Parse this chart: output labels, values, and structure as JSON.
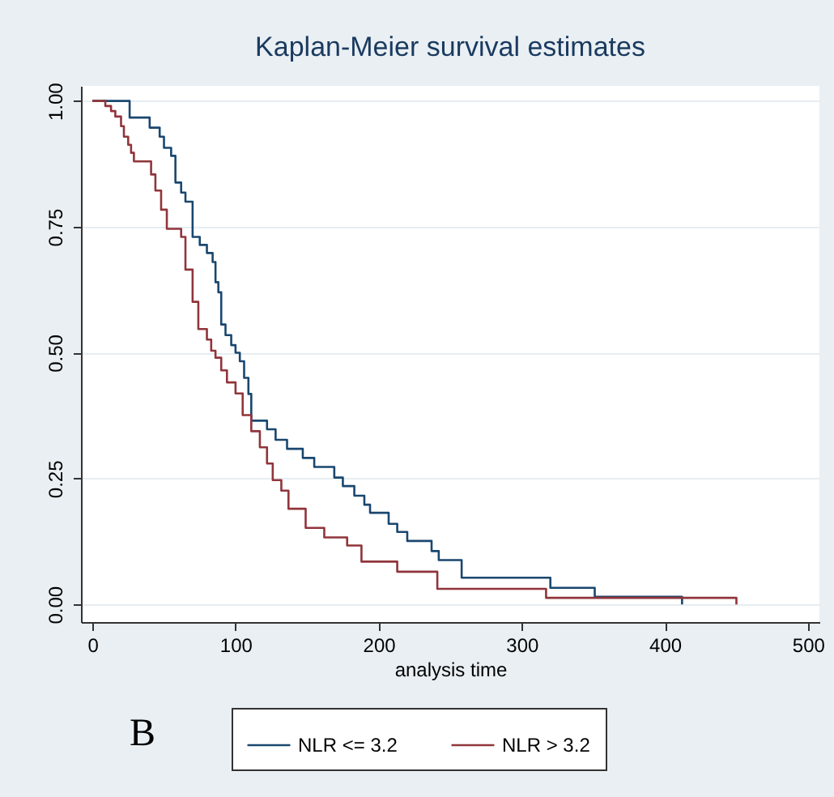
{
  "chart_data": {
    "type": "step",
    "title": "Kaplan-Meier survival estimates",
    "xlabel": "analysis time",
    "annotations": [
      "B"
    ],
    "xlim": [
      -8,
      508
    ],
    "xticks": [
      0,
      100,
      200,
      300,
      400,
      500
    ],
    "ylim": [
      -0.035,
      1.03
    ],
    "yticks": [
      {
        "value": 0,
        "label": "0.00"
      },
      {
        "value": 0.25,
        "label": "0.25"
      },
      {
        "value": 0.5,
        "label": "0.50"
      },
      {
        "value": 0.75,
        "label": "0.75"
      },
      {
        "value": 1,
        "label": "1.00"
      }
    ],
    "grid": "y",
    "legend": "bottom",
    "series": [
      {
        "name": "NLR <= 3.2",
        "color": "#1a476f",
        "x": [
          0,
          26,
          40,
          47,
          50,
          55,
          58,
          62,
          65,
          70,
          75,
          80,
          84,
          86,
          88,
          90,
          93,
          97,
          100,
          103,
          106,
          109,
          111,
          122,
          128,
          136,
          147,
          155,
          169,
          175,
          183,
          190,
          194,
          207,
          213,
          220,
          237,
          242,
          258,
          320,
          351,
          412
        ],
        "values": [
          1.0,
          0.967,
          0.947,
          0.929,
          0.907,
          0.891,
          0.838,
          0.818,
          0.8,
          0.73,
          0.714,
          0.698,
          0.68,
          0.64,
          0.62,
          0.556,
          0.535,
          0.515,
          0.5,
          0.483,
          0.45,
          0.418,
          0.365,
          0.348,
          0.327,
          0.309,
          0.291,
          0.273,
          0.252,
          0.235,
          0.216,
          0.198,
          0.182,
          0.16,
          0.144,
          0.126,
          0.106,
          0.088,
          0.053,
          0.033,
          0.015,
          0
        ]
      },
      {
        "name": "NLR > 3.2",
        "color": "#90353b",
        "x": [
          0,
          9,
          13,
          16,
          20,
          22,
          25,
          27,
          29,
          41,
          44,
          48,
          52,
          62,
          65,
          70,
          74,
          80,
          83,
          86,
          90,
          94,
          100,
          105,
          111,
          117,
          122,
          126,
          132,
          137,
          149,
          162,
          178,
          188,
          213,
          241,
          317,
          450
        ],
        "values": [
          1.0,
          0.99,
          0.98,
          0.969,
          0.95,
          0.929,
          0.913,
          0.897,
          0.88,
          0.854,
          0.822,
          0.784,
          0.746,
          0.73,
          0.665,
          0.601,
          0.547,
          0.526,
          0.504,
          0.49,
          0.465,
          0.441,
          0.419,
          0.376,
          0.344,
          0.312,
          0.28,
          0.247,
          0.226,
          0.19,
          0.152,
          0.133,
          0.117,
          0.085,
          0.065,
          0.031,
          0.013,
          0
        ]
      }
    ]
  }
}
